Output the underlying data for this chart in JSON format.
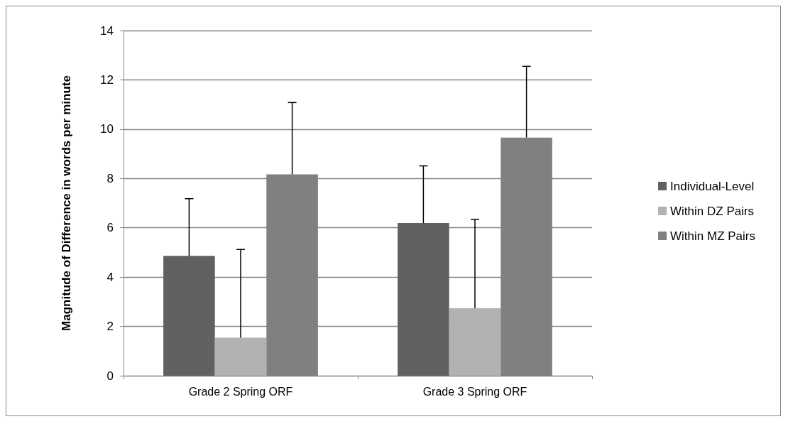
{
  "chart_data": {
    "type": "bar",
    "categories": [
      "Grade 2 Spring ORF",
      "Grade 3 Spring ORF"
    ],
    "ylabel": "Magnitude of Difference in words per minute",
    "series": [
      {
        "name": "Individual-Level",
        "color": "#616161",
        "values": [
          4.86,
          6.19
        ],
        "errors": [
          [
            4.86,
            7.18
          ],
          [
            6.19,
            8.51
          ]
        ]
      },
      {
        "name": "Within DZ Pairs",
        "color": "#b2b2b2",
        "values": [
          1.54,
          2.74
        ],
        "errors": [
          [
            1.54,
            5.12
          ],
          [
            2.74,
            6.34
          ]
        ]
      },
      {
        "name": "Within MZ Pairs",
        "color": "#808080",
        "values": [
          8.17,
          9.66
        ],
        "errors": [
          [
            8.17,
            11.08
          ],
          [
            9.66,
            12.55
          ]
        ]
      }
    ],
    "ylim": [
      0,
      14
    ],
    "yticks": [
      0,
      2,
      4,
      6,
      8,
      10,
      12,
      14
    ],
    "grid": "y",
    "legend": "right"
  }
}
